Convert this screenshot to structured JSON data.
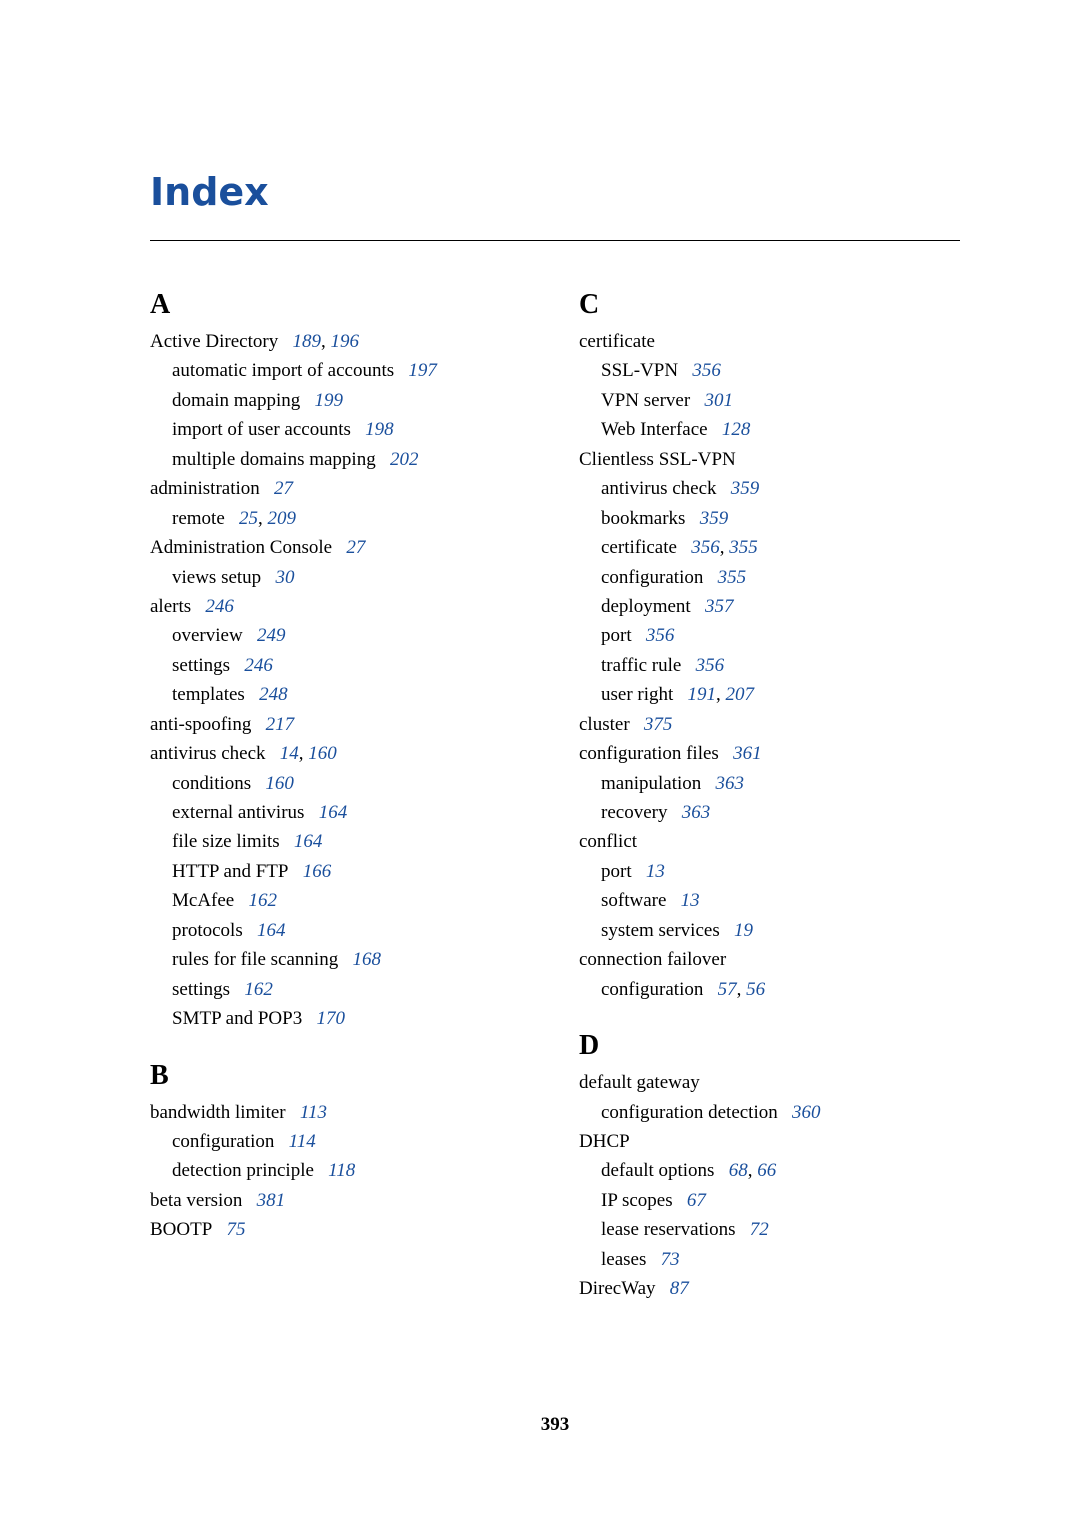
{
  "title": "Index",
  "page_number": "393",
  "colors": {
    "heading": "#1a4f9c",
    "link": "#1a4f9c",
    "text": "#000000",
    "background": "#ffffff",
    "rule": "#000000"
  },
  "sections": [
    {
      "letter": "A",
      "column": "left",
      "entries": [
        {
          "term": "Active Directory",
          "pages": [
            "189",
            "196"
          ],
          "subs": [
            {
              "term": "automatic import of accounts",
              "pages": [
                "197"
              ]
            },
            {
              "term": "domain mapping",
              "pages": [
                "199"
              ]
            },
            {
              "term": "import of user accounts",
              "pages": [
                "198"
              ]
            },
            {
              "term": "multiple domains mapping",
              "pages": [
                "202"
              ]
            }
          ]
        },
        {
          "term": "administration",
          "pages": [
            "27"
          ],
          "subs": [
            {
              "term": "remote",
              "pages": [
                "25",
                "209"
              ]
            }
          ]
        },
        {
          "term": "Administration Console",
          "pages": [
            "27"
          ],
          "subs": [
            {
              "term": "views setup",
              "pages": [
                "30"
              ]
            }
          ]
        },
        {
          "term": "alerts",
          "pages": [
            "246"
          ],
          "subs": [
            {
              "term": "overview",
              "pages": [
                "249"
              ]
            },
            {
              "term": "settings",
              "pages": [
                "246"
              ]
            },
            {
              "term": "templates",
              "pages": [
                "248"
              ]
            }
          ]
        },
        {
          "term": "anti-spoofing",
          "pages": [
            "217"
          ],
          "subs": []
        },
        {
          "term": "antivirus check",
          "pages": [
            "14",
            "160"
          ],
          "subs": [
            {
              "term": "conditions",
              "pages": [
                "160"
              ]
            },
            {
              "term": "external antivirus",
              "pages": [
                "164"
              ]
            },
            {
              "term": "file size limits",
              "pages": [
                "164"
              ]
            },
            {
              "term": "HTTP and FTP",
              "pages": [
                "166"
              ]
            },
            {
              "term": "McAfee",
              "pages": [
                "162"
              ]
            },
            {
              "term": "protocols",
              "pages": [
                "164"
              ]
            },
            {
              "term": "rules for file scanning",
              "pages": [
                "168"
              ]
            },
            {
              "term": "settings",
              "pages": [
                "162"
              ]
            },
            {
              "term": "SMTP and POP3",
              "pages": [
                "170"
              ]
            }
          ]
        }
      ]
    },
    {
      "letter": "B",
      "column": "left",
      "entries": [
        {
          "term": "bandwidth limiter",
          "pages": [
            "113"
          ],
          "subs": [
            {
              "term": "configuration",
              "pages": [
                "114"
              ]
            },
            {
              "term": "detection principle",
              "pages": [
                "118"
              ]
            }
          ]
        },
        {
          "term": "beta version",
          "pages": [
            "381"
          ],
          "subs": []
        },
        {
          "term": "BOOTP",
          "pages": [
            "75"
          ],
          "subs": []
        }
      ]
    },
    {
      "letter": "C",
      "column": "right",
      "entries": [
        {
          "term": "certificate",
          "pages": [],
          "subs": [
            {
              "term": "SSL-VPN",
              "pages": [
                "356"
              ]
            },
            {
              "term": "VPN server",
              "pages": [
                "301"
              ]
            },
            {
              "term": "Web Interface",
              "pages": [
                "128"
              ]
            }
          ]
        },
        {
          "term": "Clientless SSL-VPN",
          "pages": [],
          "subs": [
            {
              "term": "antivirus check",
              "pages": [
                "359"
              ]
            },
            {
              "term": "bookmarks",
              "pages": [
                "359"
              ]
            },
            {
              "term": "certificate",
              "pages": [
                "356",
                "355"
              ]
            },
            {
              "term": "configuration",
              "pages": [
                "355"
              ]
            },
            {
              "term": "deployment",
              "pages": [
                "357"
              ]
            },
            {
              "term": "port",
              "pages": [
                "356"
              ]
            },
            {
              "term": "traffic rule",
              "pages": [
                "356"
              ]
            },
            {
              "term": "user right",
              "pages": [
                "191",
                "207"
              ]
            }
          ]
        },
        {
          "term": "cluster",
          "pages": [
            "375"
          ],
          "subs": []
        },
        {
          "term": "configuration files",
          "pages": [
            "361"
          ],
          "subs": [
            {
              "term": "manipulation",
              "pages": [
                "363"
              ]
            },
            {
              "term": "recovery",
              "pages": [
                "363"
              ]
            }
          ]
        },
        {
          "term": "conflict",
          "pages": [],
          "subs": [
            {
              "term": "port",
              "pages": [
                "13"
              ]
            },
            {
              "term": "software",
              "pages": [
                "13"
              ]
            },
            {
              "term": "system services",
              "pages": [
                "19"
              ]
            }
          ]
        },
        {
          "term": "connection failover",
          "pages": [],
          "subs": [
            {
              "term": "configuration",
              "pages": [
                "57",
                "56"
              ]
            }
          ]
        }
      ]
    },
    {
      "letter": "D",
      "column": "right",
      "entries": [
        {
          "term": "default gateway",
          "pages": [],
          "subs": [
            {
              "term": "configuration detection",
              "pages": [
                "360"
              ]
            }
          ]
        },
        {
          "term": "DHCP",
          "pages": [],
          "subs": [
            {
              "term": "default options",
              "pages": [
                "68",
                "66"
              ]
            },
            {
              "term": "IP scopes",
              "pages": [
                "67"
              ]
            },
            {
              "term": "lease reservations",
              "pages": [
                "72"
              ]
            },
            {
              "term": "leases",
              "pages": [
                "73"
              ]
            }
          ]
        },
        {
          "term": "DirecWay",
          "pages": [
            "87"
          ],
          "subs": []
        }
      ]
    }
  ]
}
